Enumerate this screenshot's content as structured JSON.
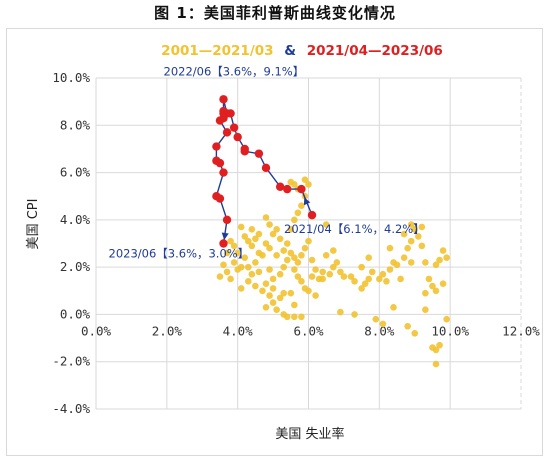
{
  "figure_title": "图 1：美国菲利普斯曲线变化情况",
  "chart_data": {
    "type": "scatter",
    "xlabel": "美国 失业率",
    "ylabel": "美国 CPI",
    "xlim": [
      0,
      12
    ],
    "ylim": [
      -4,
      10
    ],
    "x_ticks": [
      "0.0%",
      "2.0%",
      "4.0%",
      "6.0%",
      "8.0%",
      "10.0%",
      "12.0%"
    ],
    "y_ticks": [
      "10.0%",
      "8.0%",
      "6.0%",
      "4.0%",
      "2.0%",
      "0.0%",
      "-2.0%",
      "-4.0%"
    ],
    "grid": true,
    "legend_position": "top-center",
    "legend_joiner": "&",
    "series": [
      {
        "name": "2001—2021/03",
        "color": "#f2c230",
        "points": [
          [
            4.1,
            3.7
          ],
          [
            4.2,
            3.3
          ],
          [
            4.3,
            3.1
          ],
          [
            4.5,
            3.2
          ],
          [
            4.4,
            2.9
          ],
          [
            4.6,
            2.6
          ],
          [
            4.2,
            2.4
          ],
          [
            4.0,
            2.6
          ],
          [
            3.9,
            2.2
          ],
          [
            3.7,
            1.8
          ],
          [
            3.5,
            1.6
          ],
          [
            3.8,
            1.5
          ],
          [
            4.0,
            1.9
          ],
          [
            4.4,
            1.7
          ],
          [
            4.3,
            1.4
          ],
          [
            4.5,
            1.2
          ],
          [
            4.7,
            1.0
          ],
          [
            4.9,
            0.8
          ],
          [
            5.0,
            0.5
          ],
          [
            5.1,
            0.2
          ],
          [
            5.3,
            0.0
          ],
          [
            5.4,
            -0.1
          ],
          [
            5.6,
            -0.1
          ],
          [
            5.8,
            -0.1
          ],
          [
            5.0,
            1.5
          ],
          [
            5.2,
            1.7
          ],
          [
            5.3,
            2.0
          ],
          [
            5.4,
            2.3
          ],
          [
            5.6,
            1.9
          ],
          [
            5.7,
            1.6
          ],
          [
            5.8,
            1.4
          ],
          [
            5.9,
            1.1
          ],
          [
            6.0,
            1.0
          ],
          [
            6.2,
            0.8
          ],
          [
            6.3,
            1.5
          ],
          [
            6.4,
            1.8
          ],
          [
            6.6,
            1.7
          ],
          [
            6.7,
            2.0
          ],
          [
            6.8,
            2.2
          ],
          [
            6.9,
            1.8
          ],
          [
            7.2,
            1.6
          ],
          [
            7.3,
            1.4
          ],
          [
            7.5,
            1.1
          ],
          [
            7.6,
            1.3
          ],
          [
            7.7,
            1.5
          ],
          [
            7.8,
            1.8
          ],
          [
            8.0,
            1.5
          ],
          [
            8.1,
            1.7
          ],
          [
            8.3,
            1.9
          ],
          [
            8.4,
            2.2
          ],
          [
            8.5,
            2.1
          ],
          [
            8.7,
            2.4
          ],
          [
            8.8,
            2.8
          ],
          [
            8.9,
            3.1
          ],
          [
            9.0,
            3.6
          ],
          [
            8.9,
            3.8
          ],
          [
            9.1,
            3.3
          ],
          [
            9.2,
            2.9
          ],
          [
            9.3,
            2.2
          ],
          [
            9.4,
            1.5
          ],
          [
            9.5,
            1.2
          ],
          [
            9.6,
            1.0
          ],
          [
            9.8,
            1.3
          ],
          [
            9.7,
            2.3
          ],
          [
            9.8,
            2.7
          ],
          [
            9.9,
            2.4
          ],
          [
            9.6,
            2.1
          ],
          [
            4.8,
            4.1
          ],
          [
            4.9,
            3.8
          ],
          [
            5.0,
            3.4
          ],
          [
            5.1,
            3.6
          ],
          [
            5.2,
            3.2
          ],
          [
            5.4,
            3.0
          ],
          [
            5.3,
            2.7
          ],
          [
            5.5,
            2.6
          ],
          [
            5.6,
            2.4
          ],
          [
            5.7,
            2.2
          ],
          [
            5.8,
            2.5
          ],
          [
            5.9,
            2.8
          ],
          [
            6.0,
            3.1
          ],
          [
            6.1,
            2.3
          ],
          [
            5.5,
            3.6
          ],
          [
            5.6,
            4.0
          ],
          [
            5.7,
            4.3
          ],
          [
            5.8,
            4.6
          ],
          [
            5.9,
            5.0
          ],
          [
            5.7,
            5.3
          ],
          [
            5.6,
            5.5
          ],
          [
            5.5,
            5.6
          ],
          [
            5.9,
            5.7
          ],
          [
            6.5,
            3.8
          ],
          [
            6.1,
            1.6
          ],
          [
            5.0,
            1.1
          ],
          [
            4.8,
            1.3
          ],
          [
            4.6,
            1.8
          ],
          [
            4.5,
            2.2
          ],
          [
            4.7,
            2.5
          ],
          [
            4.9,
            2.8
          ],
          [
            4.6,
            3.4
          ],
          [
            4.4,
            3.6
          ],
          [
            3.9,
            2.9
          ],
          [
            3.8,
            3.1
          ],
          [
            4.1,
            2.0
          ],
          [
            4.8,
            0.3
          ],
          [
            5.5,
            0.9
          ],
          [
            5.2,
            0.7
          ],
          [
            7.0,
            1.6
          ],
          [
            6.5,
            2.5
          ],
          [
            6.7,
            2.7
          ],
          [
            7.5,
            2.0
          ],
          [
            7.7,
            2.4
          ],
          [
            8.2,
            1.4
          ],
          [
            8.6,
            1.5
          ],
          [
            6.0,
            5.5
          ],
          [
            6.2,
            1.9
          ],
          [
            6.4,
            1.5
          ],
          [
            9.3,
            0.9
          ],
          [
            8.9,
            2.2
          ],
          [
            9.2,
            3.7
          ],
          [
            8.7,
            3.4
          ],
          [
            8.3,
            2.8
          ],
          [
            7.9,
            -0.2
          ],
          [
            8.1,
            -0.4
          ],
          [
            9.9,
            -0.2
          ],
          [
            8.8,
            -0.5
          ],
          [
            9.0,
            -0.8
          ],
          [
            9.5,
            -1.4
          ],
          [
            9.6,
            -1.5
          ],
          [
            9.7,
            -1.3
          ],
          [
            9.6,
            -2.1
          ],
          [
            8.4,
            0.3
          ],
          [
            9.3,
            0.2
          ],
          [
            6.9,
            0.1
          ],
          [
            7.3,
            0.0
          ],
          [
            5.6,
            0.4
          ],
          [
            5.3,
            0.9
          ],
          [
            4.9,
            1.9
          ],
          [
            5.1,
            2.5
          ],
          [
            4.8,
            3.0
          ],
          [
            4.3,
            2.0
          ],
          [
            4.1,
            1.1
          ],
          [
            3.7,
            2.6
          ],
          [
            3.6,
            2.1
          ]
        ]
      },
      {
        "name": "2021/04—2023/06",
        "color": "#e02020",
        "points": [
          [
            6.1,
            4.2
          ],
          [
            5.8,
            5.3
          ],
          [
            5.4,
            5.3
          ],
          [
            5.2,
            5.4
          ],
          [
            4.8,
            6.2
          ],
          [
            4.6,
            6.8
          ],
          [
            4.2,
            6.9
          ],
          [
            4.2,
            7.0
          ],
          [
            4.0,
            7.5
          ],
          [
            3.9,
            7.9
          ],
          [
            3.8,
            8.5
          ],
          [
            3.6,
            8.5
          ],
          [
            3.6,
            8.3
          ],
          [
            3.6,
            8.6
          ],
          [
            3.6,
            9.1
          ],
          [
            3.7,
            8.5
          ],
          [
            3.5,
            8.2
          ],
          [
            3.7,
            7.7
          ],
          [
            3.4,
            7.1
          ],
          [
            3.4,
            6.5
          ],
          [
            3.5,
            6.4
          ],
          [
            3.6,
            6.0
          ],
          [
            3.4,
            5.0
          ],
          [
            3.5,
            4.9
          ],
          [
            3.7,
            4.0
          ],
          [
            3.6,
            3.0
          ]
        ]
      }
    ],
    "annotations": [
      {
        "text": "2022/06【3.6%，9.1%】",
        "x": 3.6,
        "y": 9.1
      },
      {
        "text": "2021/04【6.1%，4.2%】",
        "x": 6.1,
        "y": 4.2
      },
      {
        "text": "2023/06【3.6%，3.0%】",
        "x": 3.6,
        "y": 3.0
      }
    ],
    "path_color": "#1f3c99"
  }
}
